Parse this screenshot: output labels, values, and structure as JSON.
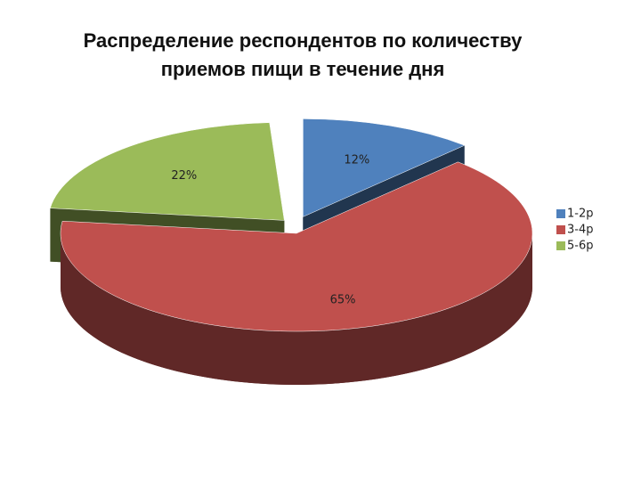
{
  "chart_data": {
    "type": "pie3d",
    "title": "Распределение респондентов по количеству приемов пищи в течение дня",
    "categories": [
      "1-2р",
      "3-4р",
      "5-6р"
    ],
    "values": [
      12,
      65,
      22
    ],
    "value_labels": [
      "12%",
      "65%",
      "22%"
    ],
    "colors": [
      "#4f81bd",
      "#c0504d",
      "#9bbb59"
    ],
    "legend": "right"
  }
}
